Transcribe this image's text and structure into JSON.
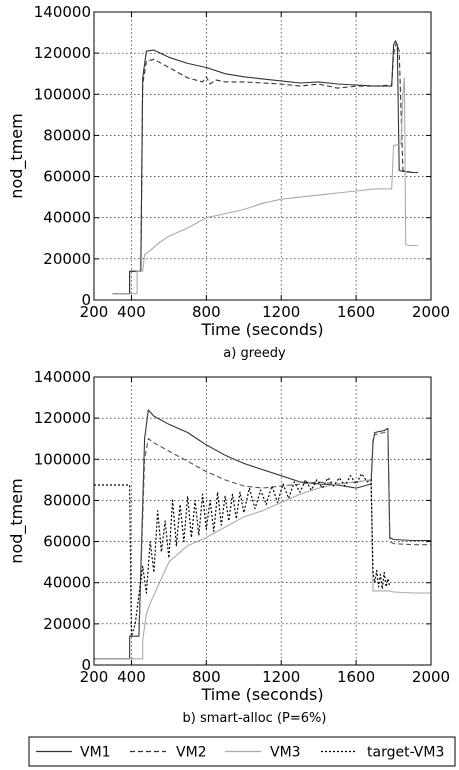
{
  "legend": {
    "entries": [
      {
        "name": "VM1",
        "color": "#333333",
        "dash": "solid"
      },
      {
        "name": "VM2",
        "color": "#333333",
        "dash": "dashed"
      },
      {
        "name": "VM3",
        "color": "#aaaaaa",
        "dash": "solid"
      },
      {
        "name": "target-VM3",
        "color": "#000000",
        "dash": "dotted"
      }
    ]
  },
  "chart_data": [
    {
      "type": "line",
      "caption": "a) greedy",
      "xlabel": "Time (seconds)",
      "ylabel": "nod_tmem",
      "xlim": [
        200,
        2000
      ],
      "ylim": [
        0,
        140000
      ],
      "xticks": [
        200,
        400,
        800,
        1200,
        1600,
        2000
      ],
      "yticks": [
        0,
        20000,
        40000,
        60000,
        80000,
        100000,
        120000,
        140000
      ],
      "grid": true,
      "series": [
        {
          "name": "VM1",
          "color": "#333333",
          "dash": "solid",
          "x": [
            300,
            390,
            390,
            450,
            460,
            480,
            520,
            600,
            700,
            800,
            900,
            1000,
            1100,
            1200,
            1300,
            1400,
            1500,
            1600,
            1700,
            1790,
            1800,
            1810,
            1820,
            1830,
            1850,
            1900,
            1930
          ],
          "y": [
            3000,
            3000,
            14000,
            14000,
            108000,
            121000,
            121500,
            118000,
            115000,
            113000,
            110000,
            108500,
            107500,
            106500,
            105500,
            106000,
            105000,
            104500,
            104000,
            104000,
            124000,
            126000,
            124000,
            63000,
            62500,
            62000,
            62000
          ]
        },
        {
          "name": "VM2",
          "color": "#333333",
          "dash": "dashed",
          "x": [
            300,
            390,
            390,
            450,
            460,
            480,
            520,
            600,
            700,
            780,
            800,
            820,
            850,
            900,
            1000,
            1100,
            1200,
            1300,
            1400,
            1500,
            1600,
            1700,
            1790,
            1800,
            1815,
            1830,
            1850,
            1900,
            1930
          ],
          "y": [
            3000,
            3000,
            14000,
            14000,
            105000,
            116000,
            117000,
            113000,
            108000,
            106000,
            108500,
            105000,
            107000,
            106000,
            106000,
            105500,
            105000,
            104000,
            105000,
            103000,
            104000,
            104000,
            104500,
            120000,
            125000,
            121000,
            63000,
            62000,
            62000
          ]
        },
        {
          "name": "VM3",
          "color": "#aaaaaa",
          "dash": "solid",
          "x": [
            300,
            430,
            430,
            460,
            470,
            500,
            550,
            600,
            700,
            800,
            900,
            1000,
            1100,
            1200,
            1300,
            1400,
            1500,
            1600,
            1700,
            1790,
            1800,
            1840,
            1850,
            1858,
            1865,
            1880,
            1930
          ],
          "y": [
            3000,
            3000,
            14000,
            14000,
            22000,
            24000,
            28000,
            31000,
            35000,
            40000,
            42000,
            44000,
            47000,
            49000,
            50000,
            51000,
            52000,
            53000,
            54000,
            54000,
            75000,
            76000,
            100000,
            108000,
            27000,
            26500,
            26500
          ]
        }
      ]
    },
    {
      "type": "line",
      "caption": "b) smart-alloc (P=6%)",
      "xlabel": "Time (seconds)",
      "ylabel": "nod_tmem",
      "xlim": [
        200,
        2000
      ],
      "ylim": [
        0,
        140000
      ],
      "xticks": [
        200,
        400,
        800,
        1200,
        1600,
        2000
      ],
      "yticks": [
        0,
        20000,
        40000,
        60000,
        80000,
        100000,
        120000,
        140000
      ],
      "grid": true,
      "series": [
        {
          "name": "VM1",
          "color": "#333333",
          "dash": "solid",
          "x": [
            200,
            390,
            390,
            440,
            470,
            490,
            520,
            600,
            700,
            800,
            900,
            1000,
            1100,
            1200,
            1300,
            1400,
            1500,
            1600,
            1680,
            1690,
            1700,
            1750,
            1770,
            1780,
            1800,
            1900,
            2000
          ],
          "y": [
            3000,
            3000,
            14000,
            14000,
            110000,
            124000,
            121000,
            117000,
            113000,
            107000,
            102000,
            98000,
            95000,
            92000,
            89000,
            88000,
            87500,
            86000,
            88000,
            108000,
            113000,
            114000,
            115000,
            62000,
            61000,
            60500,
            60500
          ]
        },
        {
          "name": "VM2",
          "color": "#555555",
          "dash": "dashed",
          "x": [
            200,
            390,
            390,
            440,
            470,
            490,
            520,
            600,
            700,
            800,
            900,
            1000,
            1100,
            1200,
            1300,
            1400,
            1500,
            1600,
            1680,
            1690,
            1700,
            1750,
            1770,
            1780,
            1800,
            1900,
            2000
          ],
          "y": [
            3000,
            3000,
            14000,
            14000,
            100000,
            110000,
            108000,
            104000,
            99000,
            94000,
            90000,
            87000,
            86000,
            87000,
            88000,
            89000,
            88000,
            89000,
            90000,
            110000,
            112000,
            113000,
            114000,
            60000,
            59000,
            58500,
            58500
          ]
        },
        {
          "name": "VM3",
          "color": "#aaaaaa",
          "dash": "solid",
          "x": [
            200,
            460,
            460,
            480,
            500,
            550,
            600,
            700,
            800,
            900,
            1000,
            1100,
            1200,
            1300,
            1400,
            1500,
            1600,
            1680,
            1690,
            1780,
            1800,
            1900,
            2000
          ],
          "y": [
            3000,
            3000,
            12000,
            25000,
            30000,
            40000,
            50000,
            58000,
            62000,
            67000,
            72000,
            75000,
            79000,
            83000,
            86000,
            88000,
            89000,
            90000,
            36000,
            36000,
            35500,
            35000,
            35000
          ]
        },
        {
          "name": "target-VM3",
          "color": "#000000",
          "dash": "dotted",
          "x": [
            200,
            300,
            390,
            400,
            420,
            440,
            460,
            480,
            500,
            520,
            540,
            560,
            580,
            600,
            620,
            640,
            660,
            680,
            700,
            720,
            740,
            760,
            780,
            800,
            820,
            840,
            860,
            880,
            900,
            920,
            940,
            960,
            980,
            1000,
            1030,
            1060,
            1090,
            1120,
            1150,
            1180,
            1210,
            1240,
            1270,
            1300,
            1330,
            1360,
            1390,
            1420,
            1450,
            1480,
            1510,
            1540,
            1570,
            1600,
            1630,
            1660,
            1680,
            1690,
            1700,
            1710,
            1720,
            1730,
            1740,
            1750,
            1760,
            1770,
            1780
          ],
          "y": [
            87500,
            87500,
            87500,
            14000,
            20000,
            34000,
            48000,
            35000,
            60000,
            45000,
            75000,
            55000,
            70000,
            52000,
            80000,
            58000,
            78000,
            60000,
            82000,
            62000,
            80000,
            63000,
            83000,
            66000,
            80000,
            65000,
            84000,
            68000,
            82000,
            70000,
            83000,
            71000,
            84000,
            74000,
            86000,
            76000,
            85000,
            78000,
            87000,
            79000,
            88000,
            81000,
            89000,
            84000,
            90000,
            85000,
            90000,
            86000,
            91000,
            87000,
            91000,
            87000,
            92000,
            88000,
            93000,
            89000,
            90000,
            45000,
            40000,
            46000,
            38000,
            44000,
            37000,
            45000,
            38000,
            42000,
            38000
          ]
        }
      ]
    }
  ]
}
